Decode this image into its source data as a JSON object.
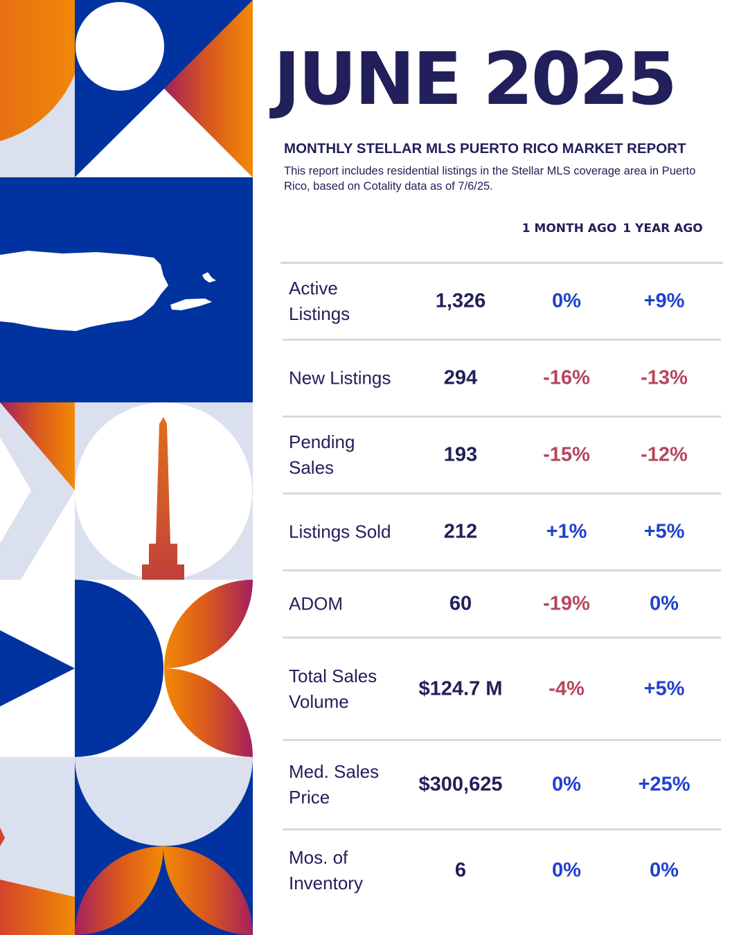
{
  "report": {
    "title": "JUNE 2025",
    "subtitle": "MONTHLY STELLAR MLS PUERTO RICO MARKET REPORT",
    "description": "This report includes residential listings in the Stellar MLS coverage area in Puerto Rico, based on Cotality data as of 7/6/25."
  },
  "table": {
    "col_month": "1 MONTH AGO",
    "col_year": "1 YEAR AGO",
    "rows": [
      {
        "label": "Active Listings",
        "value": "1,326",
        "month": "0%",
        "year": "+9%"
      },
      {
        "label": "New Listings",
        "value": "294",
        "month": "-16%",
        "year": "-13%"
      },
      {
        "label": "Pending Sales",
        "value": "193",
        "month": "-15%",
        "year": "-12%"
      },
      {
        "label": "Listings Sold",
        "value": "212",
        "month": "+1%",
        "year": "+5%"
      },
      {
        "label": "ADOM",
        "value": "60",
        "month": "-19%",
        "year": "0%"
      },
      {
        "label": "Total Sales Volume",
        "value": "$124.7 M",
        "month": "-4%",
        "year": "+5%"
      },
      {
        "label": "Med. Sales Price",
        "value": "$300,625",
        "month": "0%",
        "year": "+25%"
      },
      {
        "label": "Mos. of Inventory",
        "value": "6",
        "month": "0%",
        "year": "0%"
      }
    ]
  },
  "colors": {
    "navy": "#21205a",
    "blue": "#0033a0",
    "light": "#dae0ee",
    "positive": "#1f3fcf",
    "negative": "#b4475a",
    "orange": "#f28a05",
    "magenta": "#a3205f"
  }
}
